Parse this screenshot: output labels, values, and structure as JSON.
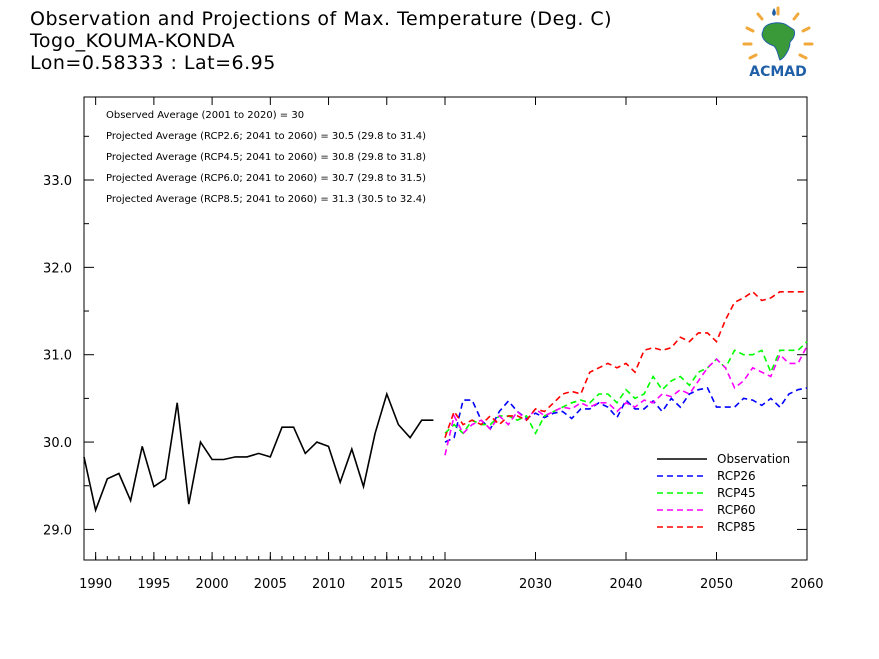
{
  "header": {
    "title": "Observation and Projections of Max. Temperature (Deg. C)",
    "location": "Togo_KOUMA-KONDA",
    "coords": "Lon=0.58333 : Lat=6.95"
  },
  "logo": {
    "text": "ACMAD",
    "brand_color": "#1f5fa8",
    "accent_color": "#f2a93b",
    "map_color": "#3a9a3a"
  },
  "annotations": [
    "Observed Average (2001 to 2020) = 30",
    "Projected Average (RCP2.6; 2041 to 2060) = 30.5 (29.8 to 31.4)",
    "Projected Average (RCP4.5; 2041 to 2060) = 30.8 (29.8 to 31.8)",
    "Projected Average (RCP6.0; 2041 to 2060) = 30.7 (29.8 to 31.5)",
    "Projected Average (RCP8.5; 2041 to 2060) = 31.3 (30.5 to 32.4)"
  ],
  "chart_data": {
    "type": "line",
    "ylim": [
      28.65,
      33.95
    ],
    "yticks": [
      29.0,
      30.0,
      31.0,
      32.0,
      33.0
    ],
    "ytick_labels": [
      "29.0",
      "30.0",
      "31.0",
      "32.0",
      "33.0"
    ],
    "x_segments": [
      {
        "range": [
          1989,
          2020
        ],
        "ticks": [
          1990,
          1995,
          2000,
          2005,
          2010,
          2015,
          2020
        ]
      },
      {
        "range": [
          2020,
          2060
        ],
        "ticks": [
          2020,
          2030,
          2040,
          2050,
          2060
        ]
      }
    ],
    "xtick_labels": [
      "1990",
      "1995",
      "2000",
      "2005",
      "2010",
      "2015",
      "2020",
      "2030",
      "2040",
      "2050",
      "2060"
    ],
    "grid": false,
    "legend_position": "bottom-right",
    "series": [
      {
        "name": "Observation",
        "color": "#000000",
        "dashed": false,
        "x": [
          1989,
          1990,
          1991,
          1992,
          1993,
          1994,
          1995,
          1996,
          1997,
          1998,
          1999,
          2000,
          2001,
          2002,
          2003,
          2004,
          2005,
          2006,
          2007,
          2008,
          2009,
          2010,
          2011,
          2012,
          2013,
          2014,
          2015,
          2016,
          2017,
          2018,
          2019
        ],
        "values": [
          29.83,
          29.22,
          29.58,
          29.64,
          29.33,
          29.95,
          29.49,
          29.58,
          30.45,
          29.29,
          30.0,
          29.8,
          29.8,
          29.83,
          29.83,
          29.87,
          29.83,
          30.17,
          30.17,
          29.87,
          30.0,
          29.95,
          29.54,
          29.92,
          29.49,
          30.1,
          30.55,
          30.2,
          30.05,
          30.25,
          30.25
        ]
      },
      {
        "name": "RCP26",
        "color": "#0000ff",
        "dashed": true,
        "x": [
          2020,
          2021,
          2022,
          2023,
          2024,
          2025,
          2026,
          2027,
          2028,
          2029,
          2030,
          2031,
          2032,
          2033,
          2034,
          2035,
          2036,
          2037,
          2038,
          2039,
          2040,
          2041,
          2042,
          2043,
          2044,
          2045,
          2046,
          2047,
          2048,
          2049,
          2050,
          2051,
          2052,
          2053,
          2054,
          2055,
          2056,
          2057,
          2058,
          2059,
          2060
        ],
        "values": [
          30.0,
          30.05,
          30.48,
          30.48,
          30.25,
          30.15,
          30.35,
          30.47,
          30.35,
          30.27,
          30.33,
          30.28,
          30.33,
          30.35,
          30.27,
          30.38,
          30.38,
          30.45,
          30.4,
          30.28,
          30.48,
          30.38,
          30.38,
          30.47,
          30.35,
          30.5,
          30.4,
          30.55,
          30.6,
          30.62,
          30.4,
          30.4,
          30.4,
          30.5,
          30.48,
          30.42,
          30.5,
          30.4,
          30.55,
          30.6,
          30.62
        ]
      },
      {
        "name": "RCP45",
        "color": "#00ff00",
        "dashed": true,
        "x": [
          2020,
          2021,
          2022,
          2023,
          2024,
          2025,
          2026,
          2027,
          2028,
          2029,
          2030,
          2031,
          2032,
          2033,
          2034,
          2035,
          2036,
          2037,
          2038,
          2039,
          2040,
          2041,
          2042,
          2043,
          2044,
          2045,
          2046,
          2047,
          2048,
          2049,
          2050,
          2051,
          2052,
          2053,
          2054,
          2055,
          2056,
          2057,
          2058,
          2059,
          2060
        ],
        "values": [
          30.1,
          30.2,
          30.1,
          30.25,
          30.2,
          30.2,
          30.3,
          30.3,
          30.25,
          30.3,
          30.1,
          30.3,
          30.35,
          30.4,
          30.45,
          30.48,
          30.45,
          30.55,
          30.55,
          30.45,
          30.6,
          30.5,
          30.55,
          30.75,
          30.6,
          30.7,
          30.75,
          30.65,
          30.8,
          30.85,
          30.95,
          30.85,
          31.05,
          31.0,
          31.0,
          31.05,
          30.8,
          31.05,
          31.05,
          31.05,
          31.15
        ]
      },
      {
        "name": "RCP60",
        "color": "#ff00ff",
        "dashed": true,
        "x": [
          2020,
          2021,
          2022,
          2023,
          2024,
          2025,
          2026,
          2027,
          2028,
          2029,
          2030,
          2031,
          2032,
          2033,
          2034,
          2035,
          2036,
          2037,
          2038,
          2039,
          2040,
          2041,
          2042,
          2043,
          2044,
          2045,
          2046,
          2047,
          2048,
          2049,
          2050,
          2051,
          2052,
          2053,
          2054,
          2055,
          2056,
          2057,
          2058,
          2059,
          2060
        ],
        "values": [
          29.85,
          30.3,
          30.1,
          30.2,
          30.25,
          30.15,
          30.3,
          30.2,
          30.35,
          30.25,
          30.38,
          30.3,
          30.35,
          30.4,
          30.38,
          30.45,
          30.4,
          30.45,
          30.45,
          30.35,
          30.45,
          30.4,
          30.48,
          30.45,
          30.55,
          30.52,
          30.6,
          30.55,
          30.7,
          30.85,
          30.95,
          30.85,
          30.62,
          30.7,
          30.85,
          30.8,
          30.75,
          31.0,
          30.9,
          30.9,
          31.1
        ]
      },
      {
        "name": "RCP85",
        "color": "#ff0000",
        "dashed": true,
        "x": [
          2020,
          2021,
          2022,
          2023,
          2024,
          2025,
          2026,
          2027,
          2028,
          2029,
          2030,
          2031,
          2032,
          2033,
          2034,
          2035,
          2036,
          2037,
          2038,
          2039,
          2040,
          2041,
          2042,
          2043,
          2044,
          2045,
          2046,
          2047,
          2048,
          2049,
          2050,
          2051,
          2052,
          2053,
          2054,
          2055,
          2056,
          2057,
          2058,
          2059,
          2060
        ],
        "values": [
          30.05,
          30.35,
          30.2,
          30.25,
          30.2,
          30.3,
          30.2,
          30.3,
          30.3,
          30.25,
          30.38,
          30.35,
          30.45,
          30.55,
          30.58,
          30.55,
          30.8,
          30.85,
          30.9,
          30.85,
          30.9,
          30.8,
          31.05,
          31.08,
          31.05,
          31.08,
          31.2,
          31.15,
          31.25,
          31.25,
          31.15,
          31.4,
          31.6,
          31.65,
          31.72,
          31.62,
          31.65,
          31.72,
          31.72,
          31.72,
          31.72
        ]
      }
    ]
  }
}
